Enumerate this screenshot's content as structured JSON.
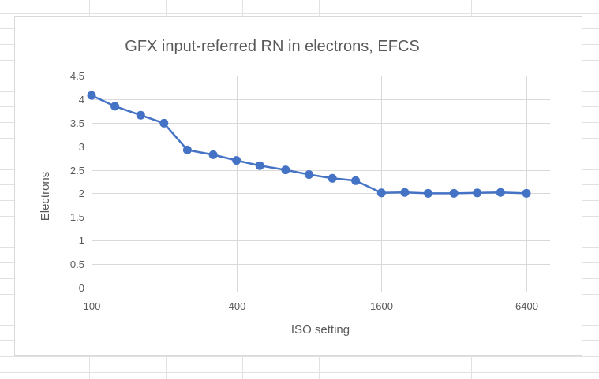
{
  "colors": {
    "series": "#4472c4",
    "gridline": "#d9d9d9",
    "sheet_grid": "#e1e1e1",
    "text": "#595959"
  },
  "chart_data": {
    "type": "line",
    "title": "GFX input-referred RN in electrons, EFCS",
    "xlabel": "ISO setting",
    "ylabel": "Electrons",
    "x_scale": "log2",
    "xlim": [
      100,
      6400
    ],
    "ylim": [
      0,
      4.5
    ],
    "y_ticks": [
      0,
      0.5,
      1,
      1.5,
      2,
      2.5,
      3,
      3.5,
      4,
      4.5
    ],
    "y_tick_labels": [
      "0",
      "0.5",
      "1",
      "1.5",
      "2",
      "2.5",
      "3",
      "3.5",
      "4",
      "4.5"
    ],
    "x_ticks": [
      100,
      400,
      1600,
      6400
    ],
    "x_tick_labels": [
      "100",
      "400",
      "1600",
      "6400"
    ],
    "grid": true,
    "markers": true,
    "series": [
      {
        "x": [
          100,
          125,
          160,
          200,
          250,
          320,
          400,
          500,
          640,
          800,
          1000,
          1250,
          1600,
          2000,
          2500,
          3200,
          4000,
          5000,
          6400
        ],
        "values": [
          4.08,
          3.85,
          3.66,
          3.49,
          2.92,
          2.82,
          2.7,
          2.59,
          2.5,
          2.4,
          2.32,
          2.27,
          2.01,
          2.02,
          2.0,
          2.0,
          2.01,
          2.02,
          2.0
        ]
      }
    ]
  }
}
